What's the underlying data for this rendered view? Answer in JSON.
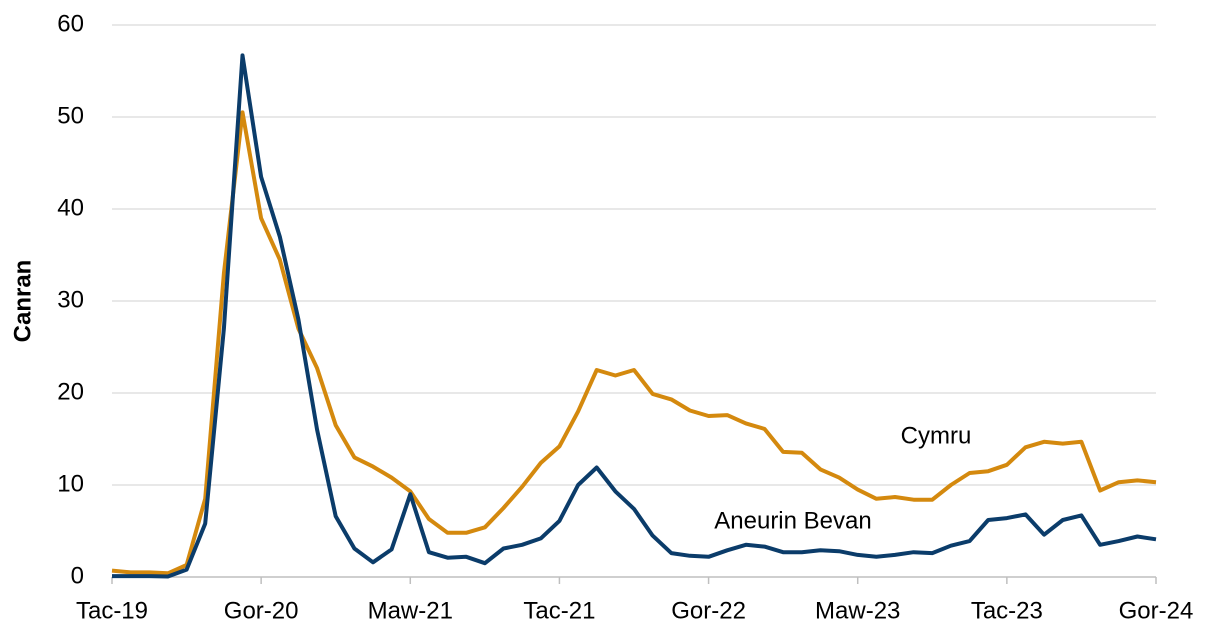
{
  "chart_data": {
    "type": "line",
    "y_label": "Canran",
    "categories": [
      "Tac-19",
      null,
      null,
      null,
      null,
      null,
      null,
      null,
      "Gor-20",
      null,
      null,
      null,
      null,
      null,
      null,
      null,
      "Maw-21",
      null,
      null,
      null,
      null,
      null,
      null,
      null,
      "Tac-21",
      null,
      null,
      null,
      null,
      null,
      null,
      null,
      "Gor-22",
      null,
      null,
      null,
      null,
      null,
      null,
      null,
      "Maw-23",
      null,
      null,
      null,
      null,
      null,
      null,
      null,
      "Tac-23",
      null,
      null,
      null,
      null,
      null,
      null,
      null,
      "Gor-24"
    ],
    "series": [
      {
        "name": "Cymru",
        "color": "#d4890e",
        "values": [
          0.7,
          0.5,
          0.5,
          0.4,
          1.3,
          8.5,
          33,
          50.5,
          39,
          34.5,
          27,
          22.7,
          16.5,
          13,
          12,
          10.8,
          9.3,
          6.3,
          4.8,
          4.8,
          5.4,
          7.5,
          9.8,
          12.4,
          14.2,
          18,
          22.5,
          21.9,
          22.5,
          19.9,
          19.3,
          18.1,
          17.5,
          17.6,
          16.7,
          16.1,
          13.6,
          13.5,
          11.7,
          10.8,
          9.5,
          8.5,
          8.7,
          8.4,
          8.4,
          10,
          11.3,
          11.5,
          12.2,
          14.1,
          14.7,
          14.5,
          14.7,
          9.4,
          10.3,
          10.5,
          10.3
        ]
      },
      {
        "name": "Aneurin Bevan",
        "color": "#0b3c6a",
        "values": [
          0.1,
          0.1,
          0.1,
          0.05,
          0.8,
          5.8,
          27,
          56.7,
          43.5,
          37,
          28,
          16,
          6.6,
          3.1,
          1.6,
          3,
          9,
          2.7,
          2.1,
          2.2,
          1.5,
          3.1,
          3.5,
          4.2,
          6.1,
          10,
          11.9,
          9.3,
          7.4,
          4.5,
          2.6,
          2.3,
          2.2,
          2.9,
          3.5,
          3.3,
          2.7,
          2.7,
          2.9,
          2.8,
          2.4,
          2.2,
          2.4,
          2.7,
          2.6,
          3.4,
          3.9,
          6.2,
          6.4,
          6.8,
          4.6,
          6.2,
          6.7,
          3.5,
          3.9,
          4.4,
          4.1
        ]
      }
    ],
    "ylim": [
      0,
      60
    ],
    "yticks": [
      0,
      10,
      20,
      30,
      40,
      50,
      60
    ],
    "grid": true
  }
}
